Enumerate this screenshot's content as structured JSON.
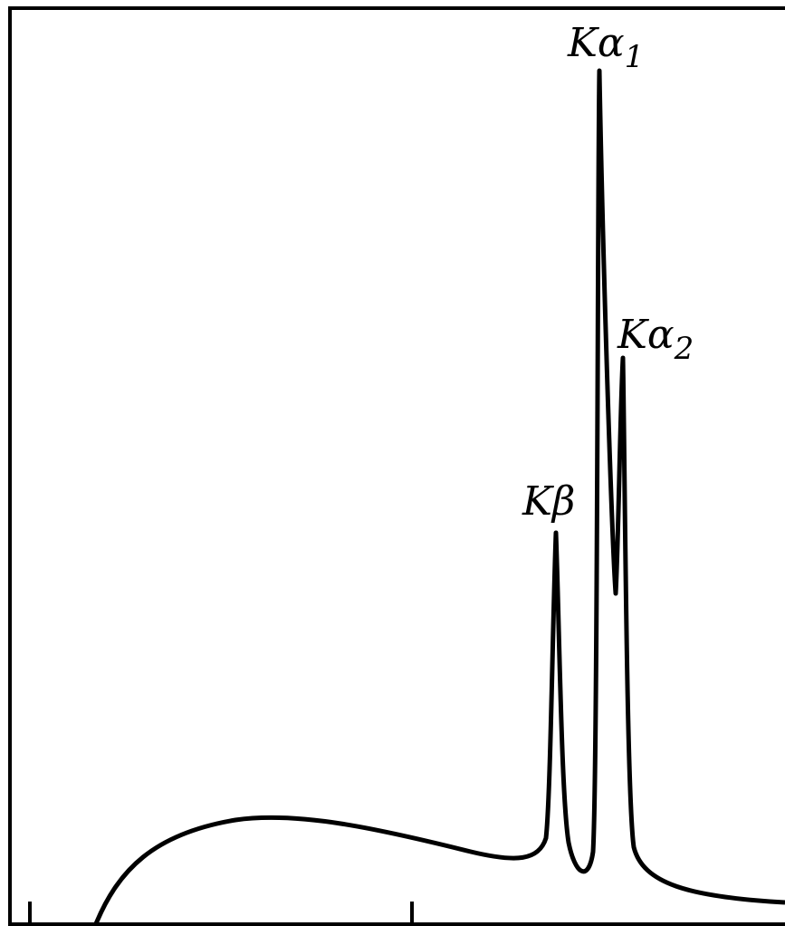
{
  "annotations": {
    "k_alpha_1": {
      "text": "Kα",
      "sub": "1"
    },
    "k_alpha_2": {
      "text": "Kα",
      "sub": "2"
    },
    "k_beta": {
      "text": "Kβ"
    }
  }
}
